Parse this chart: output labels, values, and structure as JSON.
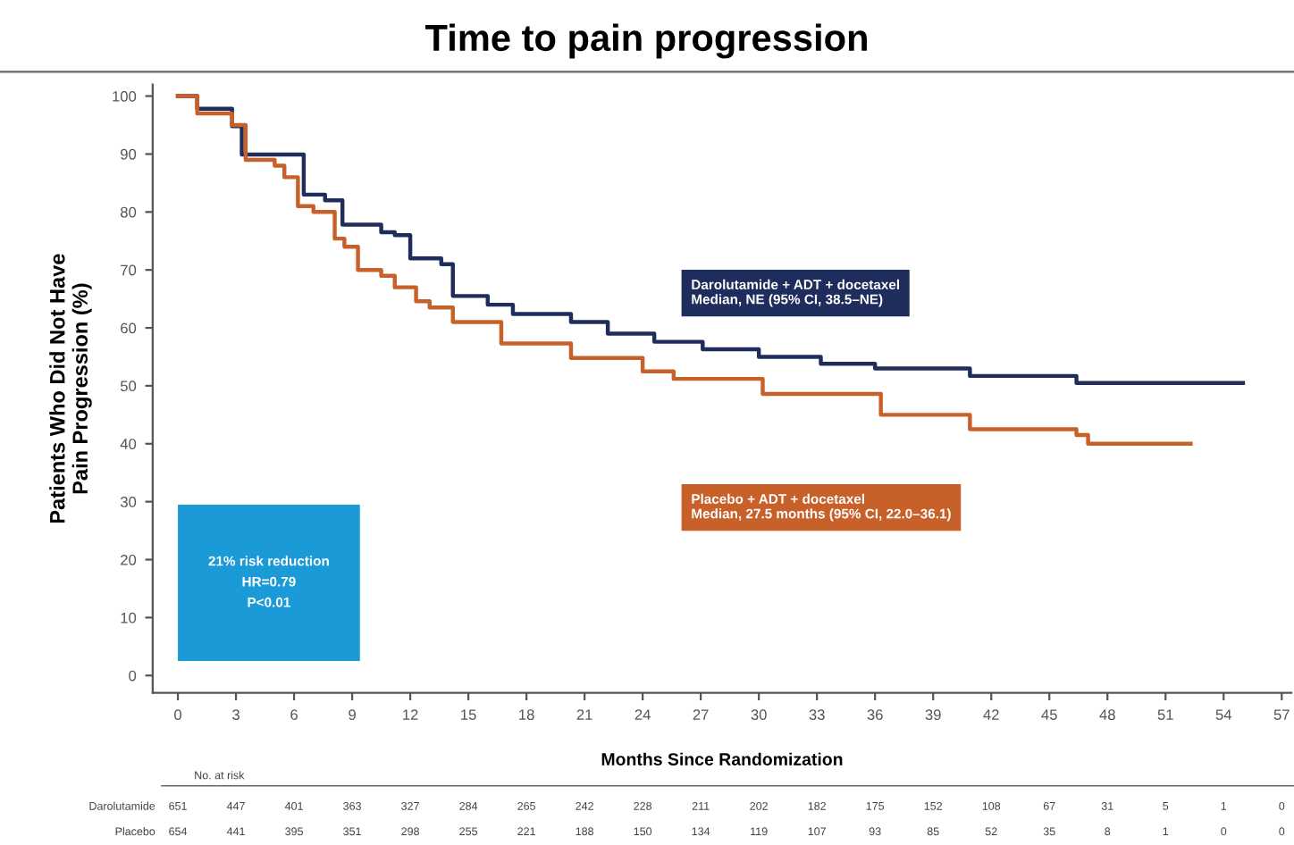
{
  "chart_data": {
    "type": "step",
    "title": "Time to pain progression",
    "xlabel": "Months Since Randomization",
    "ylabel": "Patients Who Did Not Have\nPain Progression (%)",
    "xlim": [
      -1.3,
      57.5
    ],
    "ylim": [
      -3,
      102
    ],
    "xticks": [
      0,
      3,
      6,
      9,
      12,
      15,
      18,
      21,
      24,
      27,
      30,
      33,
      36,
      39,
      42,
      45,
      48,
      51,
      54,
      57
    ],
    "yticks": [
      0,
      10,
      20,
      30,
      40,
      50,
      60,
      70,
      80,
      90,
      100
    ],
    "grid": false,
    "marker": "none",
    "line_style": "solid",
    "series": [
      {
        "color": "#1f2d5c",
        "x": [
          0,
          1,
          2.8,
          3.3,
          5.3,
          6.5,
          7.6,
          8.5,
          10.5,
          11.2,
          12,
          13.6,
          14.2,
          16,
          17.3,
          20.3,
          22.2,
          24.6,
          27.1,
          30,
          33.2,
          36,
          40.9,
          46.4,
          55
        ],
        "values": [
          100,
          97.8,
          94.8,
          89.9,
          89.9,
          83,
          82,
          77.8,
          76.5,
          76,
          72,
          71,
          65.5,
          64,
          62.4,
          61,
          59,
          57.6,
          56.3,
          55,
          53.8,
          53,
          51.7,
          50.5,
          50.5
        ]
      },
      {
        "color": "#c8602a",
        "x": [
          0,
          1,
          2.8,
          3.5,
          5,
          5.5,
          6.2,
          7,
          8.1,
          8.6,
          9.3,
          10.5,
          11.2,
          12.3,
          13,
          14.2,
          16.7,
          20.3,
          24,
          25.6,
          30.2,
          36.3,
          40.9,
          46.4,
          47,
          52.3
        ],
        "values": [
          100,
          97,
          95,
          89,
          88,
          86,
          81,
          80,
          75.4,
          74,
          70,
          69,
          67,
          64.6,
          63.5,
          61,
          57.3,
          54.8,
          52.5,
          51.2,
          48.6,
          45,
          42.5,
          41.5,
          40,
          40
        ]
      }
    ],
    "annotations": [
      "Darolutamide + ADT + docetaxel\nMedian, NE (95% CI, 38.5–NE)",
      "Placebo + ADT + docetaxel\nMedian, 27.5 months (95% CI, 22.0–36.1)",
      "21% risk reduction\nHR=0.79\nP<0.01",
      "No. at risk",
      "Darolutamide 651 447 401 363 327 284 265 242 228 211 202 182 175 152 108 67 31 5 1 0",
      "Placebo 654 441 395 351 298 255 221 188 150 134 119 107 93 85 52 35 8 1 0 0"
    ]
  }
}
